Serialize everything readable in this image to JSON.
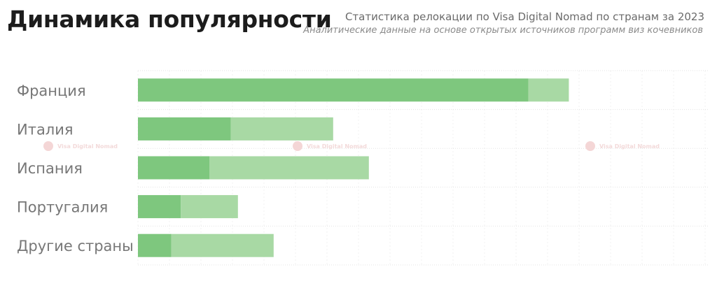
{
  "header": {
    "title": "Динамика популярности",
    "subtitle": "Статистика релокации по Visa Digital Nomad по странам за 2023",
    "source_note": "Аналитические данные на основе открытых источников программ виз кочевников"
  },
  "watermark": {
    "text": "Visa Digital Nomad",
    "icon": "logo-icon",
    "color": "#f4d6d6"
  },
  "colors": {
    "primary": "#7ec77e",
    "secondary": "#a8d9a4",
    "grid": "#e3e3e3"
  },
  "chart_data": {
    "type": "bar",
    "orientation": "horizontal",
    "stacked": true,
    "categories": [
      "Франция",
      "Италия",
      "Испания",
      "Португалия",
      "Другие страны"
    ],
    "series": [
      {
        "values": [
          82,
          19.5,
          15,
          9,
          7
        ]
      },
      {
        "values": [
          8.5,
          21.5,
          33.5,
          12,
          21.5
        ]
      }
    ],
    "xlim": [
      0,
      120
    ],
    "grid": true,
    "legend": "none"
  }
}
